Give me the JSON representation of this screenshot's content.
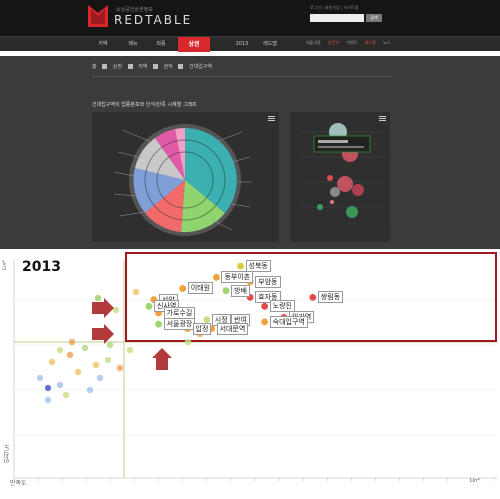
{
  "header": {
    "logo_subtitle": "소상공인상권정보",
    "logo_text": "REDTABLE",
    "header_links": "로그인 | 회원가입 | 사이트맵",
    "search_button": "검색"
  },
  "nav": {
    "items": [
      "지역",
      "메뉴",
      "외풍",
      "상권",
      "2013",
      "레드맵"
    ],
    "active_index": 3,
    "right_items": [
      "제출내용",
      "방문자",
      "이벤트",
      "레드맵",
      "뉴스"
    ]
  },
  "breadcrumb": [
    "홈",
    "상권",
    "지역",
    "관악",
    "건대입구역"
  ],
  "analysis_title": "건대입구역의 업종분포와 인식/만족 시계열 그래프",
  "chart_data": {
    "type": "scatter",
    "title": "2013",
    "xlabel": "만족도",
    "ylabel": "인식도",
    "x_end_label": "Lin*",
    "y_end_label": "Lin*",
    "labeled_points": [
      {
        "label": "성북동",
        "x": 0.47,
        "y": 0.95
      },
      {
        "label": "동부이촌",
        "x": 0.42,
        "y": 0.9
      },
      {
        "label": "부암동",
        "x": 0.49,
        "y": 0.88
      },
      {
        "label": "이태원",
        "x": 0.35,
        "y": 0.85
      },
      {
        "label": "방배",
        "x": 0.44,
        "y": 0.84
      },
      {
        "label": "효자동",
        "x": 0.49,
        "y": 0.81
      },
      {
        "label": "쌍림동",
        "x": 0.62,
        "y": 0.81
      },
      {
        "label": "서양",
        "x": 0.29,
        "y": 0.8
      },
      {
        "label": "신사역",
        "x": 0.28,
        "y": 0.77
      },
      {
        "label": "노량진",
        "x": 0.52,
        "y": 0.77
      },
      {
        "label": "가로수길",
        "x": 0.3,
        "y": 0.74
      },
      {
        "label": "위기역",
        "x": 0.56,
        "y": 0.72
      },
      {
        "label": "시정",
        "x": 0.4,
        "y": 0.71
      },
      {
        "label": "반여",
        "x": 0.44,
        "y": 0.71
      },
      {
        "label": "숙대입구역",
        "x": 0.52,
        "y": 0.7
      },
      {
        "label": "서울광장",
        "x": 0.3,
        "y": 0.69
      },
      {
        "label": "압정",
        "x": 0.36,
        "y": 0.67
      },
      {
        "label": "서대문역",
        "x": 0.41,
        "y": 0.67
      }
    ]
  }
}
